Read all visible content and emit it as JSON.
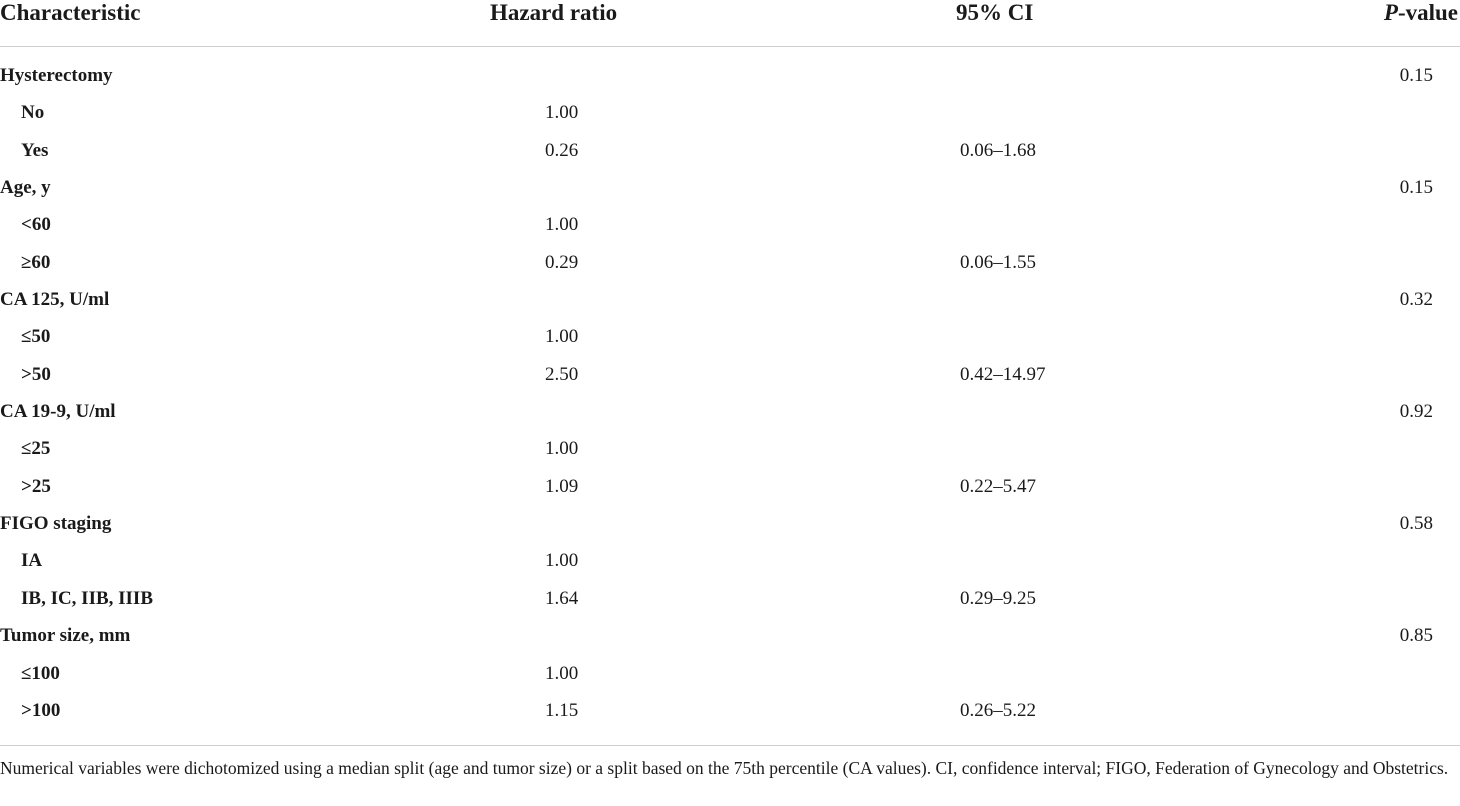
{
  "table": {
    "headers": {
      "characteristic": "Characteristic",
      "hazard_ratio": "Hazard ratio",
      "ci": "95% CI",
      "p_value_italic": "P",
      "p_value_rest": "-value"
    },
    "rows": [
      {
        "label": "Hysterectomy",
        "sub": false,
        "hr": "",
        "ci": "",
        "p": "0.15"
      },
      {
        "label": "No",
        "sub": true,
        "hr": "1.00",
        "ci": "",
        "p": ""
      },
      {
        "label": "Yes",
        "sub": true,
        "hr": "0.26",
        "ci": "0.06–1.68",
        "p": ""
      },
      {
        "label": "Age, y",
        "sub": false,
        "hr": "",
        "ci": "",
        "p": "0.15"
      },
      {
        "label": "<60",
        "sub": true,
        "hr": "1.00",
        "ci": "",
        "p": ""
      },
      {
        "label": "≥60",
        "sub": true,
        "hr": "0.29",
        "ci": "0.06–1.55",
        "p": ""
      },
      {
        "label": "CA 125, U/ml",
        "sub": false,
        "hr": "",
        "ci": "",
        "p": "0.32"
      },
      {
        "label": "≤50",
        "sub": true,
        "hr": "1.00",
        "ci": "",
        "p": ""
      },
      {
        "label": ">50",
        "sub": true,
        "hr": "2.50",
        "ci": "0.42–14.97",
        "p": ""
      },
      {
        "label": "CA 19-9, U/ml",
        "sub": false,
        "hr": "",
        "ci": "",
        "p": "0.92"
      },
      {
        "label": "≤25",
        "sub": true,
        "hr": "1.00",
        "ci": "",
        "p": ""
      },
      {
        "label": ">25",
        "sub": true,
        "hr": "1.09",
        "ci": "0.22–5.47",
        "p": ""
      },
      {
        "label": "FIGO staging",
        "sub": false,
        "hr": "",
        "ci": "",
        "p": "0.58"
      },
      {
        "label": "IA",
        "sub": true,
        "hr": "1.00",
        "ci": "",
        "p": ""
      },
      {
        "label": "IB, IC, IIB, IIIB",
        "sub": true,
        "hr": "1.64",
        "ci": "0.29–9.25",
        "p": ""
      },
      {
        "label": "Tumor size, mm",
        "sub": false,
        "hr": "",
        "ci": "",
        "p": "0.85"
      },
      {
        "label": "≤100",
        "sub": true,
        "hr": "1.00",
        "ci": "",
        "p": ""
      },
      {
        "label": ">100",
        "sub": true,
        "hr": "1.15",
        "ci": "0.26–5.22",
        "p": ""
      }
    ]
  },
  "footnote": "Numerical variables were dichotomized using a median split (age and tumor size) or a split based on the 75th percentile (CA values). CI, confidence interval; FIGO, Federation of Gynecology and Obstetrics."
}
